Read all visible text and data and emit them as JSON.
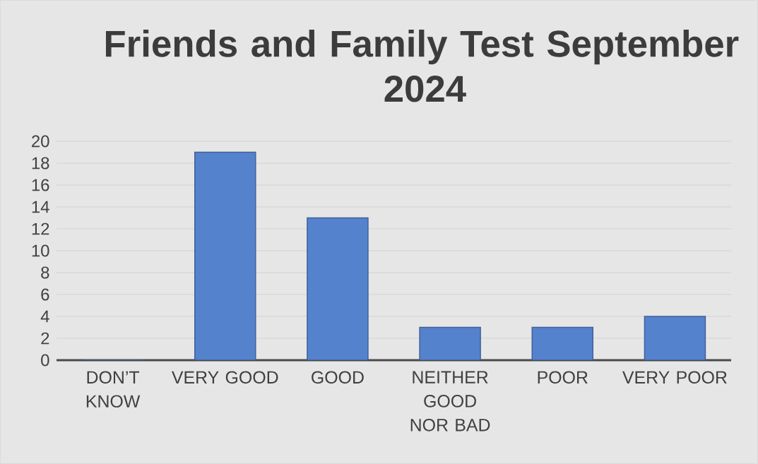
{
  "chart_data": {
    "type": "bar",
    "title": "Friends and Family Test September 2024",
    "categories": [
      "DON’T KNOW",
      "VERY GOOD",
      "GOOD",
      "NEITHER GOOD NOR BAD",
      "POOR",
      "VERY POOR"
    ],
    "values": [
      0,
      19,
      13,
      3,
      3,
      4
    ],
    "color": "#5582cc",
    "ylim": [
      0,
      20
    ],
    "yticks": [
      0,
      2,
      4,
      6,
      8,
      10,
      12,
      14,
      16,
      18,
      20
    ],
    "grid": "y"
  }
}
